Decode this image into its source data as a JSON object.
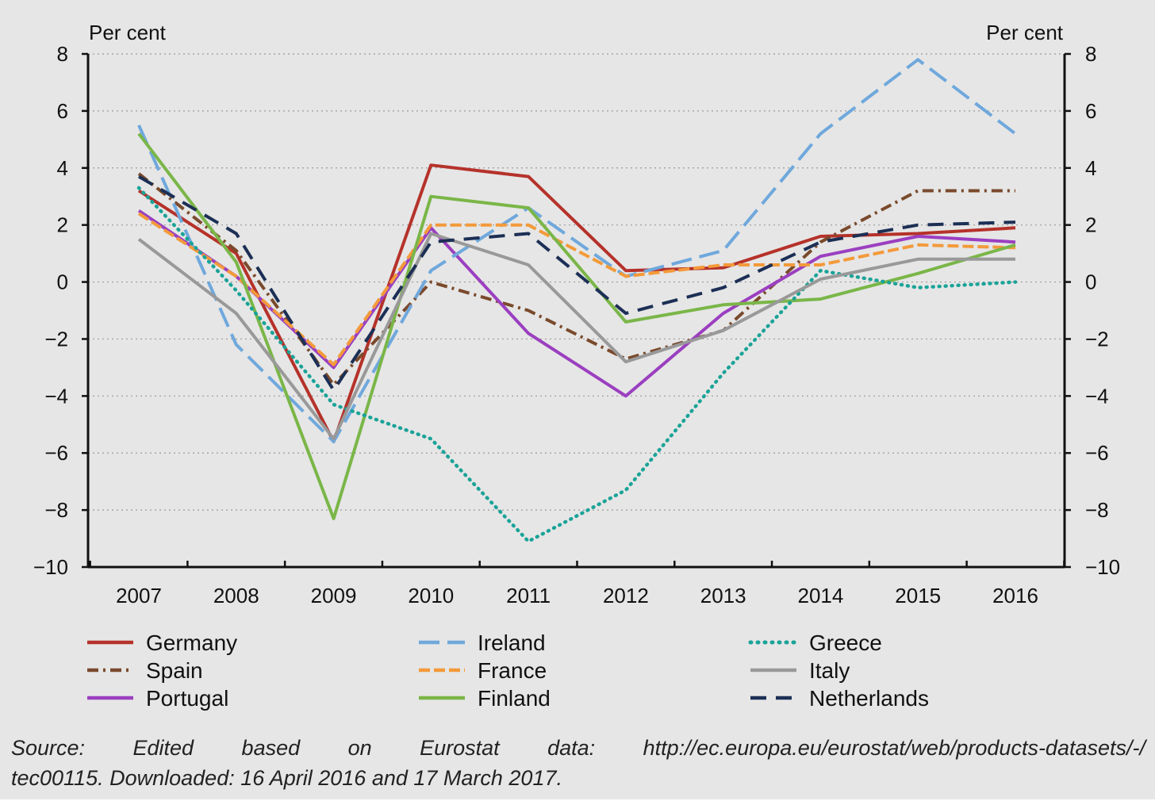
{
  "chart_data": {
    "type": "line",
    "unit_label_left": "Per cent",
    "unit_label_right": "Per cent",
    "categories": [
      "2007",
      "2008",
      "2009",
      "2010",
      "2011",
      "2012",
      "2013",
      "2014",
      "2015",
      "2016"
    ],
    "ylim": [
      -10,
      8
    ],
    "yticks": [
      8,
      6,
      4,
      2,
      0,
      -2,
      -4,
      -6,
      -8,
      -10
    ],
    "ytick_labels": [
      "8",
      "6",
      "4",
      "2",
      "0",
      "−2",
      "−4",
      "−6",
      "−8",
      "−10"
    ],
    "grid": "horizontal dotted",
    "legend_position": "bottom",
    "series": [
      {
        "name": "Germany",
        "color": "#b5322a",
        "style": "solid",
        "values": [
          3.2,
          1.0,
          -5.6,
          4.1,
          3.7,
          0.4,
          0.5,
          1.6,
          1.7,
          1.9
        ]
      },
      {
        "name": "Spain",
        "color": "#7a4a2c",
        "style": "dashdot",
        "values": [
          3.8,
          1.1,
          -3.6,
          0.0,
          -1.0,
          -2.7,
          -1.7,
          1.4,
          3.2,
          3.2
        ]
      },
      {
        "name": "Portugal",
        "color": "#9b3fc0",
        "style": "solid",
        "values": [
          2.5,
          0.2,
          -3.0,
          1.9,
          -1.8,
          -4.0,
          -1.1,
          0.9,
          1.6,
          1.4
        ]
      },
      {
        "name": "Ireland",
        "color": "#6fa8dc",
        "style": "longdash",
        "values": [
          5.5,
          -2.2,
          -5.6,
          0.4,
          2.6,
          0.2,
          1.1,
          5.2,
          7.8,
          5.2
        ]
      },
      {
        "name": "France",
        "color": "#f39a3a",
        "style": "dashed",
        "values": [
          2.4,
          0.2,
          -2.9,
          2.0,
          2.0,
          0.2,
          0.6,
          0.6,
          1.3,
          1.2
        ]
      },
      {
        "name": "Finland",
        "color": "#7ab648",
        "style": "solid",
        "values": [
          5.2,
          0.7,
          -8.3,
          3.0,
          2.6,
          -1.4,
          -0.8,
          -0.6,
          0.3,
          1.3
        ]
      },
      {
        "name": "Greece",
        "color": "#1aa398",
        "style": "dotted",
        "values": [
          3.3,
          -0.3,
          -4.3,
          -5.5,
          -9.1,
          -7.3,
          -3.2,
          0.4,
          -0.2,
          0.0
        ]
      },
      {
        "name": "Italy",
        "color": "#999999",
        "style": "solid",
        "values": [
          1.5,
          -1.1,
          -5.5,
          1.7,
          0.6,
          -2.8,
          -1.7,
          0.1,
          0.8,
          0.8
        ]
      },
      {
        "name": "Netherlands",
        "color": "#1c2f55",
        "style": "bigdash",
        "values": [
          3.7,
          1.7,
          -3.8,
          1.4,
          1.7,
          -1.1,
          -0.2,
          1.4,
          2.0,
          2.1
        ]
      }
    ]
  },
  "source": {
    "line1": "Source: Edited based on Eurostat data: http://ec.europa.eu/eurostat/web/products-datasets/-/",
    "line2": "tec00115. Downloaded: 16 April 2016 and 17 March 2017."
  }
}
